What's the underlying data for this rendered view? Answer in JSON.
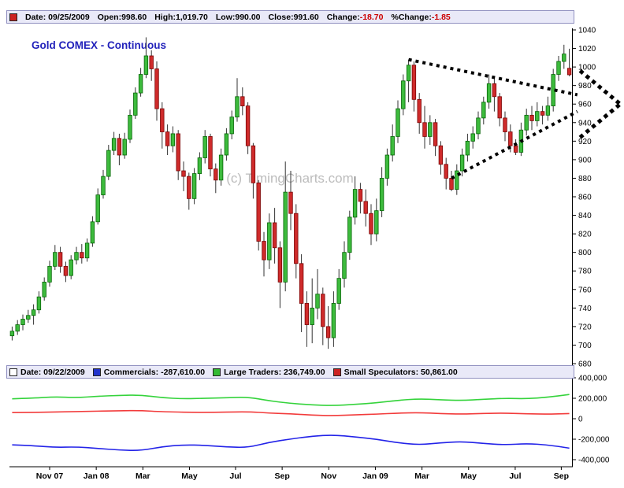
{
  "title": "Gold COMEX - Continuous",
  "watermark": "(c) TimingCharts.com",
  "colors": {
    "candle_up": "#3dbb3d",
    "candle_up_border": "#056605",
    "candle_down": "#cf2b2b",
    "candle_down_border": "#7a0505",
    "commercials": "#2323e8",
    "large_traders": "#35d33c",
    "small_speculators": "#f23b3b",
    "bar_bg": "#e9e9f8",
    "negative_text": "#cc0000",
    "title_text": "#2222bb"
  },
  "ohlc_bar": {
    "swatch": "#cc2222",
    "items": [
      {
        "text": "Date: 09/25/2009"
      },
      {
        "text": "Open:998.60"
      },
      {
        "text": "High:1,019.70"
      },
      {
        "text": "Low:990.00"
      },
      {
        "text": "Close:991.60"
      },
      {
        "text": "Change:",
        "value": "-18.70"
      },
      {
        "text": "%Change:",
        "value": "-1.85"
      }
    ]
  },
  "cot_bar": {
    "items": [
      {
        "swatch": "#ffffff",
        "text": "Date: 09/22/2009",
        "name": "cot-date"
      },
      {
        "swatch": "#2233cc",
        "text": "Commercials: -287,610.00",
        "name": "commercials-legend"
      },
      {
        "swatch": "#33bb33",
        "text": "Large Traders: 236,749.00",
        "name": "large-traders-legend"
      },
      {
        "swatch": "#cc2222",
        "text": "Small Speculators: 50,861.00",
        "name": "small-speculators-legend"
      }
    ]
  },
  "chart_data": [
    {
      "type": "candlestick",
      "title": "Gold COMEX - Continuous (weekly)",
      "y_axis": {
        "min": 680,
        "max": 1040,
        "tick_step": 20,
        "side": "right"
      },
      "x_axis": {
        "labels": [
          {
            "label": "Nov 07",
            "week": 7
          },
          {
            "label": "Jan 08",
            "week": 15.7
          },
          {
            "label": "Mar",
            "week": 24.4
          },
          {
            "label": "May",
            "week": 33.1
          },
          {
            "label": "Jul",
            "week": 41.7
          },
          {
            "label": "Sep",
            "week": 50.4
          },
          {
            "label": "Nov",
            "week": 59.1
          },
          {
            "label": "Jan 09",
            "week": 67.8
          },
          {
            "label": "Mar",
            "week": 76.5
          },
          {
            "label": "May",
            "week": 85.2
          },
          {
            "label": "Jul",
            "week": 93.9
          },
          {
            "label": "Sep",
            "week": 102.5
          }
        ]
      },
      "candles_ohlc": [
        [
          710,
          720,
          705,
          715
        ],
        [
          715,
          727,
          711,
          722
        ],
        [
          722,
          733,
          716,
          728
        ],
        [
          728,
          738,
          724,
          732
        ],
        [
          732,
          744,
          722,
          738
        ],
        [
          738,
          758,
          734,
          752
        ],
        [
          752,
          773,
          748,
          768
        ],
        [
          768,
          791,
          763,
          785
        ],
        [
          785,
          808,
          781,
          800
        ],
        [
          800,
          806,
          778,
          785
        ],
        [
          785,
          790,
          768,
          775
        ],
        [
          775,
          797,
          771,
          792
        ],
        [
          792,
          806,
          787,
          800
        ],
        [
          800,
          809,
          788,
          794
        ],
        [
          794,
          815,
          790,
          810
        ],
        [
          810,
          839,
          806,
          833
        ],
        [
          833,
          869,
          830,
          862
        ],
        [
          862,
          889,
          858,
          882
        ],
        [
          882,
          916,
          878,
          910
        ],
        [
          910,
          930,
          905,
          923
        ],
        [
          923,
          928,
          894,
          905
        ],
        [
          905,
          929,
          901,
          922
        ],
        [
          922,
          954,
          918,
          948
        ],
        [
          948,
          978,
          944,
          972
        ],
        [
          972,
          999,
          968,
          992
        ],
        [
          992,
          1032,
          988,
          1012
        ],
        [
          1012,
          1018,
          985,
          998
        ],
        [
          998,
          1006,
          942,
          955
        ],
        [
          955,
          962,
          912,
          930
        ],
        [
          930,
          938,
          905,
          915
        ],
        [
          915,
          936,
          908,
          928
        ],
        [
          928,
          932,
          878,
          888
        ],
        [
          888,
          898,
          866,
          882
        ],
        [
          882,
          886,
          846,
          858
        ],
        [
          858,
          891,
          852,
          885
        ],
        [
          885,
          908,
          878,
          902
        ],
        [
          902,
          932,
          896,
          925
        ],
        [
          925,
          928,
          882,
          890
        ],
        [
          890,
          896,
          864,
          878
        ],
        [
          878,
          912,
          872,
          905
        ],
        [
          905,
          934,
          899,
          928
        ],
        [
          928,
          953,
          922,
          946
        ],
        [
          946,
          988,
          941,
          968
        ],
        [
          968,
          978,
          948,
          958
        ],
        [
          958,
          962,
          906,
          915
        ],
        [
          915,
          918,
          858,
          875
        ],
        [
          875,
          878,
          802,
          812
        ],
        [
          812,
          822,
          774,
          792
        ],
        [
          792,
          842,
          782,
          832
        ],
        [
          832,
          848,
          788,
          805
        ],
        [
          805,
          812,
          740,
          768
        ],
        [
          768,
          898,
          758,
          865
        ],
        [
          865,
          888,
          824,
          842
        ],
        [
          842,
          852,
          772,
          788
        ],
        [
          788,
          798,
          714,
          745
        ],
        [
          745,
          758,
          698,
          722
        ],
        [
          722,
          772,
          702,
          740
        ],
        [
          740,
          782,
          728,
          755
        ],
        [
          755,
          762,
          700,
          720
        ],
        [
          720,
          742,
          696,
          708
        ],
        [
          708,
          758,
          698,
          745
        ],
        [
          745,
          782,
          738,
          772
        ],
        [
          772,
          812,
          762,
          800
        ],
        [
          800,
          845,
          792,
          838
        ],
        [
          838,
          882,
          830,
          868
        ],
        [
          868,
          875,
          842,
          855
        ],
        [
          855,
          868,
          828,
          842
        ],
        [
          842,
          852,
          808,
          820
        ],
        [
          820,
          858,
          812,
          845
        ],
        [
          845,
          892,
          838,
          880
        ],
        [
          880,
          912,
          872,
          905
        ],
        [
          905,
          938,
          898,
          925
        ],
        [
          925,
          964,
          918,
          955
        ],
        [
          955,
          992,
          948,
          985
        ],
        [
          985,
          1008,
          962,
          1002
        ],
        [
          1002,
          1006,
          952,
          965
        ],
        [
          965,
          972,
          928,
          940
        ],
        [
          940,
          958,
          912,
          925
        ],
        [
          925,
          948,
          916,
          940
        ],
        [
          940,
          944,
          904,
          915
        ],
        [
          915,
          920,
          884,
          895
        ],
        [
          895,
          902,
          868,
          880
        ],
        [
          880,
          888,
          866,
          868
        ],
        [
          868,
          895,
          862,
          888
        ],
        [
          888,
          912,
          882,
          905
        ],
        [
          905,
          928,
          898,
          920
        ],
        [
          920,
          936,
          912,
          928
        ],
        [
          928,
          952,
          922,
          945
        ],
        [
          945,
          968,
          938,
          962
        ],
        [
          962,
          992,
          955,
          982
        ],
        [
          982,
          988,
          952,
          968
        ],
        [
          968,
          972,
          936,
          945
        ],
        [
          945,
          952,
          920,
          930
        ],
        [
          930,
          938,
          908,
          915
        ],
        [
          915,
          922,
          905,
          908
        ],
        [
          908,
          940,
          904,
          932
        ],
        [
          932,
          955,
          926,
          948
        ],
        [
          948,
          958,
          932,
          942
        ],
        [
          942,
          962,
          936,
          952
        ],
        [
          952,
          958,
          938,
          948
        ],
        [
          948,
          968,
          942,
          958
        ],
        [
          958,
          998,
          952,
          992
        ],
        [
          992,
          1012,
          985,
          1006
        ],
        [
          1006,
          1024,
          998,
          1014
        ],
        [
          998.6,
          1019.7,
          990,
          991.6
        ]
      ],
      "annotations": {
        "segments": [
          {
            "name": "upper-trendline",
            "from": [
              74,
              1008
            ],
            "to": [
              105.5,
              970
            ],
            "width": 4,
            "dash": "4 5"
          },
          {
            "name": "lower-trendline",
            "from": [
              82,
              880
            ],
            "to": [
              105.5,
              952
            ],
            "width": 4,
            "dash": "4 5"
          },
          {
            "name": "breakout-arrow-upper-wing",
            "from": [
              106,
              996
            ],
            "to": [
              113.5,
              960
            ],
            "width": 5,
            "dash": "5 5"
          },
          {
            "name": "breakout-arrow-lower-wing",
            "from": [
              106,
              924
            ],
            "to": [
              113.5,
              960
            ],
            "width": 5,
            "dash": "5 5"
          }
        ]
      }
    },
    {
      "type": "line",
      "title": "Commitment of Traders",
      "y_axis": {
        "ticks": [
          {
            "value": 400000,
            "label": "400,000"
          },
          {
            "value": 200000,
            "label": "200,000"
          },
          {
            "value": 0,
            "label": "0"
          },
          {
            "value": -200000,
            "label": "-200,000"
          },
          {
            "value": -400000,
            "label": "-400,000"
          }
        ]
      },
      "series": [
        {
          "name": "Large Traders",
          "color": "#35d33c",
          "points": [
            [
              0,
              195000
            ],
            [
              4,
              201000
            ],
            [
              8,
              215000
            ],
            [
              12,
              205000
            ],
            [
              16,
              220000
            ],
            [
              20,
              228000
            ],
            [
              24,
              232000
            ],
            [
              28,
              205000
            ],
            [
              32,
              195000
            ],
            [
              36,
              200000
            ],
            [
              40,
              205000
            ],
            [
              44,
              212000
            ],
            [
              48,
              175000
            ],
            [
              52,
              150000
            ],
            [
              56,
              135000
            ],
            [
              60,
              128000
            ],
            [
              64,
              140000
            ],
            [
              68,
              155000
            ],
            [
              72,
              180000
            ],
            [
              76,
              195000
            ],
            [
              80,
              185000
            ],
            [
              84,
              178000
            ],
            [
              88,
              190000
            ],
            [
              92,
              200000
            ],
            [
              96,
              195000
            ],
            [
              100,
              210000
            ],
            [
              104,
              236749
            ]
          ]
        },
        {
          "name": "Small Speculators",
          "color": "#f23b3b",
          "points": [
            [
              0,
              60000
            ],
            [
              4,
              62000
            ],
            [
              12,
              70000
            ],
            [
              20,
              78000
            ],
            [
              24,
              80000
            ],
            [
              28,
              68000
            ],
            [
              36,
              60000
            ],
            [
              44,
              70000
            ],
            [
              48,
              55000
            ],
            [
              52,
              48000
            ],
            [
              56,
              35000
            ],
            [
              60,
              30000
            ],
            [
              64,
              38000
            ],
            [
              68,
              45000
            ],
            [
              72,
              55000
            ],
            [
              76,
              60000
            ],
            [
              80,
              50000
            ],
            [
              84,
              45000
            ],
            [
              88,
              52000
            ],
            [
              92,
              55000
            ],
            [
              96,
              48000
            ],
            [
              100,
              45000
            ],
            [
              104,
              50861
            ]
          ]
        },
        {
          "name": "Commercials",
          "color": "#2323e8",
          "points": [
            [
              0,
              -255000
            ],
            [
              4,
              -263000
            ],
            [
              8,
              -280000
            ],
            [
              12,
              -275000
            ],
            [
              16,
              -290000
            ],
            [
              20,
              -306000
            ],
            [
              24,
              -312000
            ],
            [
              28,
              -273000
            ],
            [
              32,
              -255000
            ],
            [
              36,
              -260000
            ],
            [
              40,
              -275000
            ],
            [
              44,
              -282000
            ],
            [
              48,
              -230000
            ],
            [
              52,
              -198000
            ],
            [
              56,
              -170000
            ],
            [
              60,
              -158000
            ],
            [
              64,
              -178000
            ],
            [
              68,
              -200000
            ],
            [
              72,
              -235000
            ],
            [
              76,
              -255000
            ],
            [
              80,
              -235000
            ],
            [
              84,
              -223000
            ],
            [
              88,
              -242000
            ],
            [
              92,
              -255000
            ],
            [
              96,
              -243000
            ],
            [
              100,
              -255000
            ],
            [
              104,
              -287610
            ]
          ]
        }
      ]
    }
  ]
}
